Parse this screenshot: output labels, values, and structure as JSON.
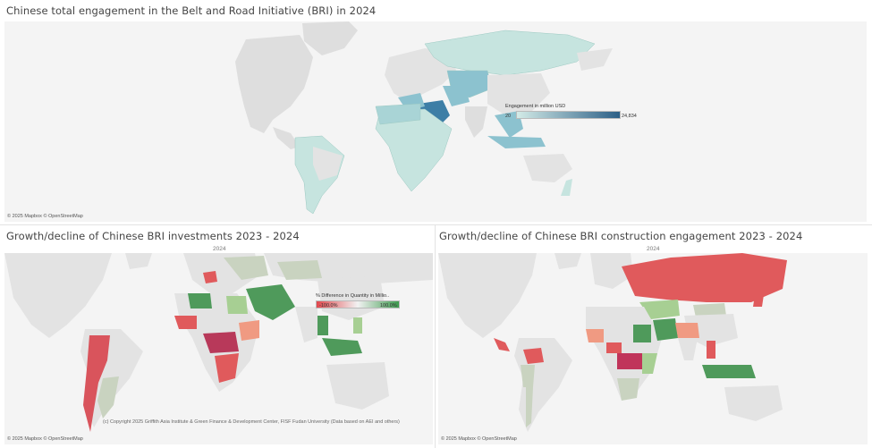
{
  "panels": {
    "total": {
      "title": "Chinese total engagement in the Belt and Road Initiative (BRI) in 2024",
      "attribution": "© 2025 Mapbox © OpenStreetMap",
      "legend": {
        "title": "Engagement in million USD",
        "min": "20",
        "max": "24,834",
        "color_low": "#d3ebe7",
        "color_high": "#2c5f86"
      }
    },
    "investments": {
      "title": "Growth/decline of Chinese BRI investments 2023 - 2024",
      "year": "2024",
      "attribution": "© 2025 Mapbox © OpenStreetMap",
      "copyright": "(c) Copyright 2025 Griffith Asia Institute & Green Finance & Development Center, FISF Fudan University (Data based on AEI and others)",
      "legend": {
        "title": "% Difference in Quantity in Millio..",
        "min": "-100.0%",
        "max": "100.0%",
        "color_low": "#e0474c",
        "color_mid": "#f2f2f2",
        "color_high": "#3d9a4e"
      }
    },
    "construction": {
      "title": "Growth/decline of Chinese BRI construction engagement 2023 - 2024",
      "year": "2024",
      "attribution": "© 2025 Mapbox © OpenStreetMap"
    }
  },
  "colors": {
    "land_base": "#e3e3e3",
    "ocean": "#f4f4f4",
    "teal_light": "#c6e4df",
    "teal_mid": "#8cc2cf",
    "teal_dark": "#3d7ea6",
    "red": "#e05a5c",
    "green": "#4f9a5b",
    "light_green": "#a7cf93",
    "salmon": "#f09a82",
    "grey_green": "#c9d3c0"
  }
}
